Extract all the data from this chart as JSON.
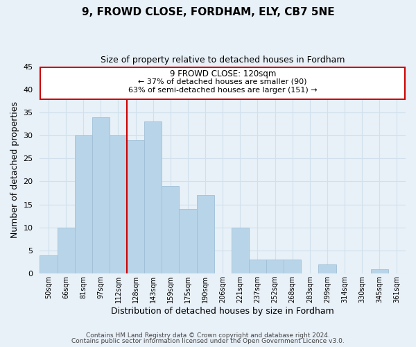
{
  "title": "9, FROWD CLOSE, FORDHAM, ELY, CB7 5NE",
  "subtitle": "Size of property relative to detached houses in Fordham",
  "xlabel": "Distribution of detached houses by size in Fordham",
  "ylabel": "Number of detached properties",
  "bin_labels": [
    "50sqm",
    "66sqm",
    "81sqm",
    "97sqm",
    "112sqm",
    "128sqm",
    "143sqm",
    "159sqm",
    "175sqm",
    "190sqm",
    "206sqm",
    "221sqm",
    "237sqm",
    "252sqm",
    "268sqm",
    "283sqm",
    "299sqm",
    "314sqm",
    "330sqm",
    "345sqm",
    "361sqm"
  ],
  "bar_heights": [
    4,
    10,
    30,
    34,
    30,
    29,
    33,
    19,
    14,
    17,
    0,
    10,
    3,
    3,
    3,
    0,
    2,
    0,
    0,
    1,
    0
  ],
  "bar_color": "#b8d4e8",
  "bar_edge_color": "#a0c0d8",
  "grid_color": "#d0e0ec",
  "vline_x_index": 4.5,
  "vline_color": "#cc0000",
  "ylim": [
    0,
    45
  ],
  "yticks": [
    0,
    5,
    10,
    15,
    20,
    25,
    30,
    35,
    40,
    45
  ],
  "annotation_title": "9 FROWD CLOSE: 120sqm",
  "annotation_line1": "← 37% of detached houses are smaller (90)",
  "annotation_line2": "63% of semi-detached houses are larger (151) →",
  "annotation_box_facecolor": "#ffffff",
  "annotation_box_edgecolor": "#cc0000",
  "footer_line1": "Contains HM Land Registry data © Crown copyright and database right 2024.",
  "footer_line2": "Contains public sector information licensed under the Open Government Licence v3.0.",
  "fig_facecolor": "#e8f0f8",
  "plot_facecolor": "#e8f0f8"
}
